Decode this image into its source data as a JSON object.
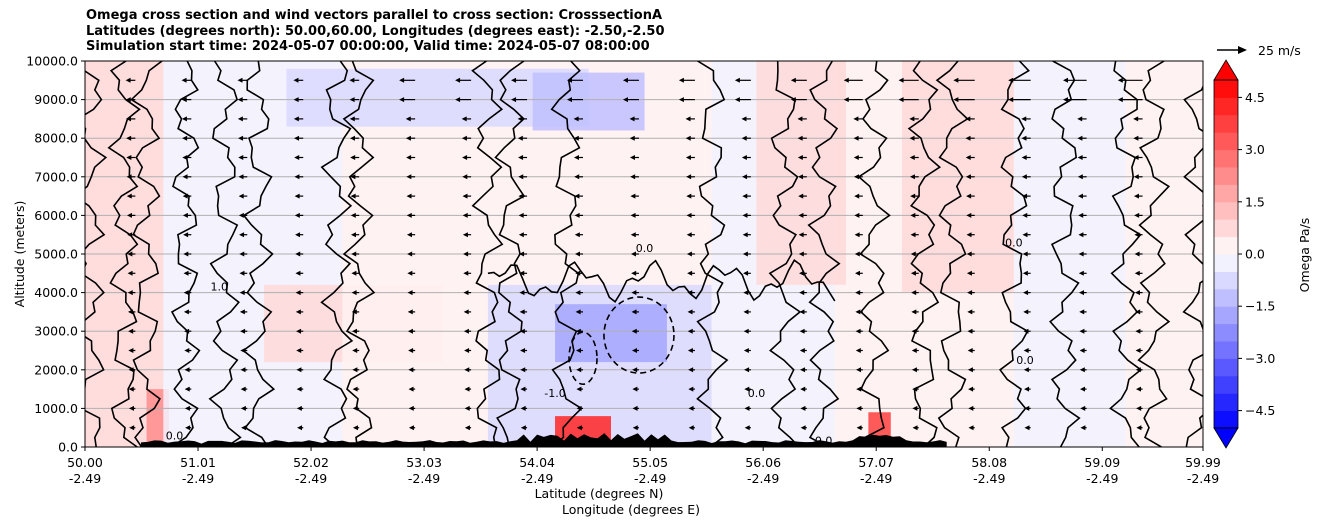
{
  "title_lines": [
    "Omega cross section and wind vectors parallel to cross section: CrosssectionA",
    "Latitudes (degrees north): 50.00,60.00, Longitudes (degrees east): -2.50,-2.50",
    "Simulation start time: 2024-05-07 00:00:00, Valid time: 2024-05-07 08:00:00"
  ],
  "chart_data": {
    "type": "heatmap",
    "subtype": "cross-section contourf with contour lines and wind quiver",
    "title": "Omega cross section and wind vectors parallel to cross section: CrosssectionA",
    "ylabel": "Altitude (meters)",
    "xlabel_1": "Latitude (degrees N)",
    "xlabel_2": "Longitude (degrees E)",
    "xlim": [
      50.0,
      59.99
    ],
    "ylim": [
      0,
      10000
    ],
    "grid": "horizontal",
    "x_ticks": [
      {
        "value": 50.0,
        "lat": "50.00",
        "lon": "-2.49"
      },
      {
        "value": 51.01,
        "lat": "51.01",
        "lon": "-2.49"
      },
      {
        "value": 52.02,
        "lat": "52.02",
        "lon": "-2.49"
      },
      {
        "value": 53.03,
        "lat": "53.03",
        "lon": "-2.49"
      },
      {
        "value": 54.04,
        "lat": "54.04",
        "lon": "-2.49"
      },
      {
        "value": 55.05,
        "lat": "55.05",
        "lon": "-2.49"
      },
      {
        "value": 56.06,
        "lat": "56.06",
        "lon": "-2.49"
      },
      {
        "value": 57.07,
        "lat": "57.07",
        "lon": "-2.49"
      },
      {
        "value": 58.08,
        "lat": "58.08",
        "lon": "-2.49"
      },
      {
        "value": 59.09,
        "lat": "59.09",
        "lon": "-2.49"
      },
      {
        "value": 59.99,
        "lat": "59.99",
        "lon": "-2.49"
      }
    ],
    "y_ticks": [
      {
        "value": 0,
        "label": "0.0"
      },
      {
        "value": 1000,
        "label": "1000.0"
      },
      {
        "value": 2000,
        "label": "2000.0"
      },
      {
        "value": 3000,
        "label": "3000.0"
      },
      {
        "value": 4000,
        "label": "4000.0"
      },
      {
        "value": 5000,
        "label": "5000.0"
      },
      {
        "value": 6000,
        "label": "6000.0"
      },
      {
        "value": 7000,
        "label": "7000.0"
      },
      {
        "value": 8000,
        "label": "8000.0"
      },
      {
        "value": 9000,
        "label": "9000.0"
      },
      {
        "value": 10000,
        "label": "10000.0"
      }
    ],
    "colorbar": {
      "label": "Omega Pa/s",
      "vmin": -5.0,
      "vmax": 5.0,
      "levels": 20,
      "extend": "both",
      "ticks": [
        {
          "value": 4.5,
          "label": "4.5"
        },
        {
          "value": 3.0,
          "label": "3.0"
        },
        {
          "value": 1.5,
          "label": "1.5"
        },
        {
          "value": 0.0,
          "label": "0.0"
        },
        {
          "value": -1.5,
          "label": "−1.5"
        },
        {
          "value": -3.0,
          "label": "−3.0"
        },
        {
          "value": -4.5,
          "label": "−4.5"
        }
      ]
    },
    "quiver_key": {
      "label": "25 m/s",
      "value": 25
    },
    "contour_levels": [
      -1.0,
      0.0,
      1.0
    ],
    "contour_labels": [
      {
        "x": 51.2,
        "y": 4050,
        "text": "1.0"
      },
      {
        "x": 54.2,
        "y": 1300,
        "text": "-1.0"
      },
      {
        "x": 56.0,
        "y": 1300,
        "text": "0.0"
      },
      {
        "x": 58.4,
        "y": 2150,
        "text": "0.0"
      },
      {
        "x": 58.3,
        "y": 5200,
        "text": "0.0"
      },
      {
        "x": 55.0,
        "y": 5050,
        "text": "0.0"
      },
      {
        "x": 56.6,
        "y": 70,
        "text": "0.0"
      },
      {
        "x": 50.8,
        "y": 200,
        "text": "0.0"
      }
    ],
    "omega_regions": [
      {
        "x0": 50.0,
        "x1": 50.7,
        "y0": 0,
        "y1": 10000,
        "value": 0.6
      },
      {
        "x0": 50.55,
        "x1": 50.75,
        "y0": 0,
        "y1": 1500,
        "value": 2.0
      },
      {
        "x0": 50.7,
        "x1": 52.3,
        "y0": 0,
        "y1": 10000,
        "value": -0.4
      },
      {
        "x0": 51.6,
        "x1": 53.2,
        "y0": 2200,
        "y1": 4200,
        "value": 0.6
      },
      {
        "x0": 51.8,
        "x1": 54.5,
        "y0": 8300,
        "y1": 9800,
        "value": -0.8
      },
      {
        "x0": 52.3,
        "x1": 53.6,
        "y0": 0,
        "y1": 8000,
        "value": 0.3
      },
      {
        "x0": 53.6,
        "x1": 55.6,
        "y0": 0,
        "y1": 4200,
        "value": -0.7
      },
      {
        "x0": 54.2,
        "x1": 55.2,
        "y0": 2200,
        "y1": 3700,
        "value": -1.6
      },
      {
        "x0": 54.0,
        "x1": 55.0,
        "y0": 8200,
        "y1": 9700,
        "value": -1.2
      },
      {
        "x0": 55.6,
        "x1": 56.7,
        "y0": 0,
        "y1": 10000,
        "value": -0.3
      },
      {
        "x0": 56.0,
        "x1": 56.8,
        "y0": 4200,
        "y1": 10000,
        "value": 0.6
      },
      {
        "x0": 56.7,
        "x1": 57.7,
        "y0": 0,
        "y1": 4000,
        "value": 0.4
      },
      {
        "x0": 57.3,
        "x1": 58.3,
        "y0": 4000,
        "y1": 10000,
        "value": 0.7
      },
      {
        "x0": 58.3,
        "x1": 59.3,
        "y0": 0,
        "y1": 10000,
        "value": -0.3
      },
      {
        "x0": 59.3,
        "x1": 59.99,
        "y0": 0,
        "y1": 10000,
        "value": 0.4
      },
      {
        "x0": 54.2,
        "x1": 54.7,
        "y0": 0,
        "y1": 800,
        "value": 4.0
      },
      {
        "x0": 57.0,
        "x1": 57.2,
        "y0": 0,
        "y1": 900,
        "value": 3.5
      }
    ]
  }
}
